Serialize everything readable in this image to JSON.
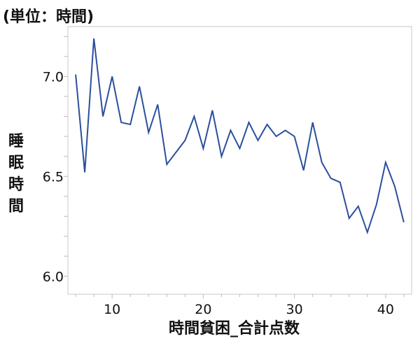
{
  "chart_data": {
    "type": "line",
    "unit_note": "(単位：時間)",
    "xlabel": "時間貧困_合計点数",
    "ylabel": "睡眠時間",
    "xlim": [
      5.15,
      42.85
    ],
    "ylim": [
      5.91,
      7.25
    ],
    "x_ticks": [
      10,
      20,
      30,
      40
    ],
    "y_ticks": [
      6.0,
      6.5,
      7.0
    ],
    "y_tick_labels": [
      "6.0",
      "6.5",
      "7.0"
    ],
    "grid": false,
    "line_color": "#2b4f9e",
    "x": [
      6,
      7,
      8,
      9,
      10,
      11,
      12,
      13,
      14,
      15,
      16,
      17,
      18,
      19,
      20,
      21,
      22,
      23,
      24,
      25,
      26,
      27,
      28,
      29,
      30,
      31,
      32,
      33,
      34,
      35,
      36,
      37,
      38,
      39,
      40,
      41,
      42
    ],
    "y": [
      7.01,
      6.52,
      7.19,
      6.8,
      7.0,
      6.77,
      6.76,
      6.95,
      6.72,
      6.86,
      6.56,
      6.62,
      6.68,
      6.8,
      6.64,
      6.83,
      6.6,
      6.73,
      6.64,
      6.77,
      6.68,
      6.76,
      6.7,
      6.73,
      6.7,
      6.53,
      6.77,
      6.57,
      6.49,
      6.47,
      6.29,
      6.35,
      6.22,
      6.36,
      6.57,
      6.45,
      6.27
    ]
  }
}
